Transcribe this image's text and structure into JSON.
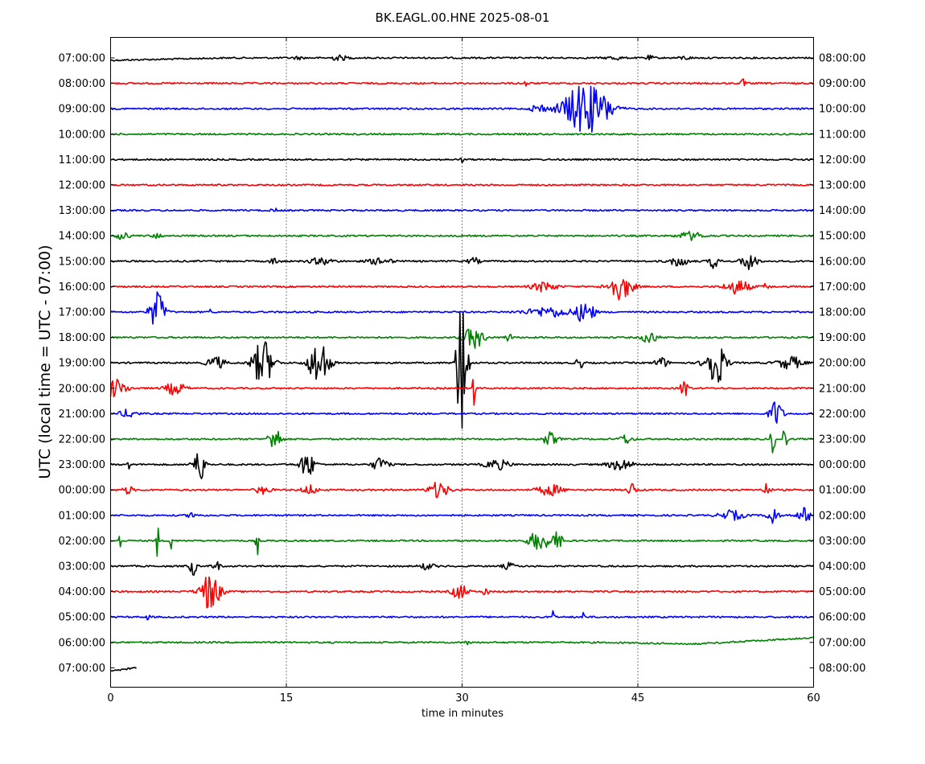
{
  "chart_data": {
    "type": "line",
    "title": "BK.EAGL.00.HNE 2025-08-01",
    "xlabel": "time in minutes",
    "ylabel": "UTC (local time = UTC - 07:00)",
    "xlim": [
      0,
      60
    ],
    "x_ticks": [
      "0",
      "15",
      "30",
      "45",
      "60"
    ],
    "grid": "vertical dotted at 15, 30, 45",
    "trace_colors": [
      "#000000",
      "#ff0000",
      "#0000ff",
      "#008000"
    ],
    "left_labels": [
      "07:00:00",
      "08:00:00",
      "09:00:00",
      "10:00:00",
      "11:00:00",
      "12:00:00",
      "13:00:00",
      "14:00:00",
      "15:00:00",
      "16:00:00",
      "17:00:00",
      "18:00:00",
      "19:00:00",
      "20:00:00",
      "21:00:00",
      "22:00:00",
      "23:00:00",
      "00:00:00",
      "01:00:00",
      "02:00:00",
      "03:00:00",
      "04:00:00",
      "05:00:00",
      "06:00:00",
      "07:00:00"
    ],
    "right_labels": [
      "08:00:00",
      "09:00:00",
      "10:00:00",
      "11:00:00",
      "12:00:00",
      "13:00:00",
      "14:00:00",
      "15:00:00",
      "16:00:00",
      "17:00:00",
      "18:00:00",
      "19:00:00",
      "20:00:00",
      "21:00:00",
      "22:00:00",
      "23:00:00",
      "00:00:00",
      "01:00:00",
      "02:00:00",
      "03:00:00",
      "04:00:00",
      "05:00:00",
      "06:00:00",
      "07:00:00",
      "08:00:00"
    ],
    "series": [
      {
        "bursts": [
          [
            16,
            0.5,
            1.5
          ],
          [
            19.5,
            0.7,
            3
          ],
          [
            43,
            0.6,
            2.5
          ],
          [
            46,
            0.4,
            2.5
          ],
          [
            49,
            0.5,
            2
          ]
        ],
        "end": 60
      },
      {
        "bursts": [
          [
            35.5,
            0.2,
            4
          ],
          [
            54,
            0.2,
            5
          ]
        ],
        "end": 60
      },
      {
        "bursts": [
          [
            36.5,
            0.5,
            7
          ],
          [
            40.5,
            1.8,
            32
          ],
          [
            42.5,
            0.5,
            5
          ]
        ],
        "end": 60
      },
      {
        "bursts": [],
        "end": 60
      },
      {
        "bursts": [
          [
            30,
            0.1,
            4
          ]
        ],
        "end": 60
      },
      {
        "bursts": [],
        "end": 60
      },
      {
        "bursts": [
          [
            14,
            0.3,
            2
          ]
        ],
        "end": 60
      },
      {
        "bursts": [
          [
            1,
            0.6,
            4
          ],
          [
            4,
            0.4,
            3
          ],
          [
            49.5,
            1,
            5
          ]
        ],
        "end": 60
      },
      {
        "bursts": [
          [
            14,
            0.4,
            4
          ],
          [
            18,
            1,
            4
          ],
          [
            23,
            1,
            4
          ],
          [
            31,
            0.5,
            4
          ],
          [
            48.5,
            0.8,
            6
          ],
          [
            51.5,
            0.4,
            9
          ],
          [
            54.5,
            0.6,
            12
          ]
        ],
        "end": 60
      },
      {
        "bursts": [
          [
            37,
            1,
            6
          ],
          [
            43.5,
            1,
            16
          ],
          [
            53.5,
            1,
            9
          ],
          [
            56,
            0.3,
            4
          ]
        ],
        "end": 60
      },
      {
        "bursts": [
          [
            4,
            0.6,
            25
          ],
          [
            8.5,
            0.1,
            5
          ],
          [
            37.5,
            2,
            6
          ],
          [
            40.3,
            0.5,
            12
          ],
          [
            41,
            0.4,
            8
          ]
        ],
        "end": 60
      },
      {
        "bursts": [
          [
            31,
            0.8,
            14
          ],
          [
            34,
            0.3,
            5
          ],
          [
            46,
            0.6,
            8
          ]
        ],
        "end": 60
      },
      {
        "bursts": [
          [
            9,
            0.7,
            8
          ],
          [
            13,
            0.8,
            30
          ],
          [
            17.8,
            0.8,
            30
          ],
          [
            30,
            0.4,
            120
          ],
          [
            40,
            0.3,
            8
          ],
          [
            47,
            0.5,
            7
          ],
          [
            51.6,
            0.8,
            30
          ],
          [
            58,
            1,
            8
          ]
        ],
        "end": 60
      },
      {
        "bursts": [
          [
            0.3,
            1,
            12
          ],
          [
            5.5,
            0.8,
            8
          ],
          [
            31,
            0.1,
            40
          ],
          [
            49,
            0.3,
            14
          ]
        ],
        "end": 60
      },
      {
        "bursts": [
          [
            1.5,
            0.7,
            5
          ],
          [
            56.8,
            0.5,
            18
          ]
        ],
        "end": 60
      },
      {
        "bursts": [
          [
            14,
            0.5,
            16
          ],
          [
            37.5,
            0.6,
            8
          ],
          [
            44,
            0.5,
            6
          ],
          [
            56.5,
            0.2,
            18
          ],
          [
            57.5,
            0.2,
            16
          ]
        ],
        "end": 60
      },
      {
        "bursts": [
          [
            1.5,
            0.1,
            16
          ],
          [
            7.2,
            0.3,
            16
          ],
          [
            7.8,
            0.3,
            20
          ],
          [
            16.8,
            0.6,
            16
          ],
          [
            23,
            0.6,
            9
          ],
          [
            33,
            1,
            6
          ],
          [
            43.5,
            1,
            7
          ]
        ],
        "end": 60
      },
      {
        "bursts": [
          [
            1.5,
            0.4,
            5
          ],
          [
            13,
            0.6,
            5
          ],
          [
            17,
            0.6,
            6
          ],
          [
            28,
            0.8,
            10
          ],
          [
            37.5,
            1,
            7
          ],
          [
            44.5,
            0.3,
            10
          ],
          [
            56,
            0.3,
            8
          ]
        ],
        "end": 60
      },
      {
        "bursts": [
          [
            7,
            0.4,
            4
          ],
          [
            53,
            1,
            6
          ],
          [
            56.5,
            0.4,
            14
          ],
          [
            59.2,
            0.5,
            10
          ]
        ],
        "end": 60
      },
      {
        "bursts": [
          [
            0.8,
            0.1,
            12
          ],
          [
            4,
            0.1,
            24
          ],
          [
            5.2,
            0.1,
            18
          ],
          [
            12.5,
            0.1,
            24
          ],
          [
            36.5,
            0.8,
            12
          ],
          [
            38,
            0.6,
            10
          ]
        ],
        "end": 60
      },
      {
        "bursts": [
          [
            7,
            0.3,
            12
          ],
          [
            9,
            0.3,
            7
          ],
          [
            27,
            0.6,
            4
          ],
          [
            34,
            0.5,
            4
          ]
        ],
        "end": 60
      },
      {
        "bursts": [
          [
            8.5,
            0.8,
            24
          ],
          [
            29.8,
            0.6,
            10
          ],
          [
            32,
            0.2,
            7
          ]
        ],
        "end": 60
      },
      {
        "bursts": [
          [
            3.2,
            0.1,
            8
          ],
          [
            37.8,
            0.1,
            14
          ],
          [
            40.3,
            0.1,
            14
          ]
        ],
        "end": 60
      },
      {
        "bursts": [
          [
            30.5,
            0.2,
            5
          ]
        ],
        "end": 60
      },
      {
        "bursts": [],
        "end": 2.2
      }
    ]
  }
}
